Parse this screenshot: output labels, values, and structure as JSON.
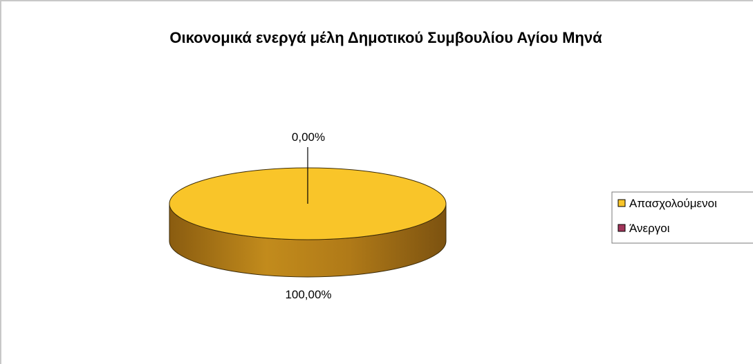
{
  "chart_data": {
    "type": "pie",
    "title": "Οικονομικά ενεργά μέλη Δημοτικού Συμβουλίου Αγίου Μηνά",
    "categories": [
      "Απασχολούμενοι",
      "Άνεργοι"
    ],
    "values": [
      100,
      0
    ],
    "data_labels": [
      "100,00%",
      "0,00%"
    ],
    "legend_position": "right",
    "colors": {
      "Απασχολούμενοι": {
        "top": "#f9c529",
        "side": "#b07a18"
      },
      "Άνεργοι": {
        "top": "#a1355a",
        "side": "#6e2340"
      }
    },
    "style": "3d"
  }
}
